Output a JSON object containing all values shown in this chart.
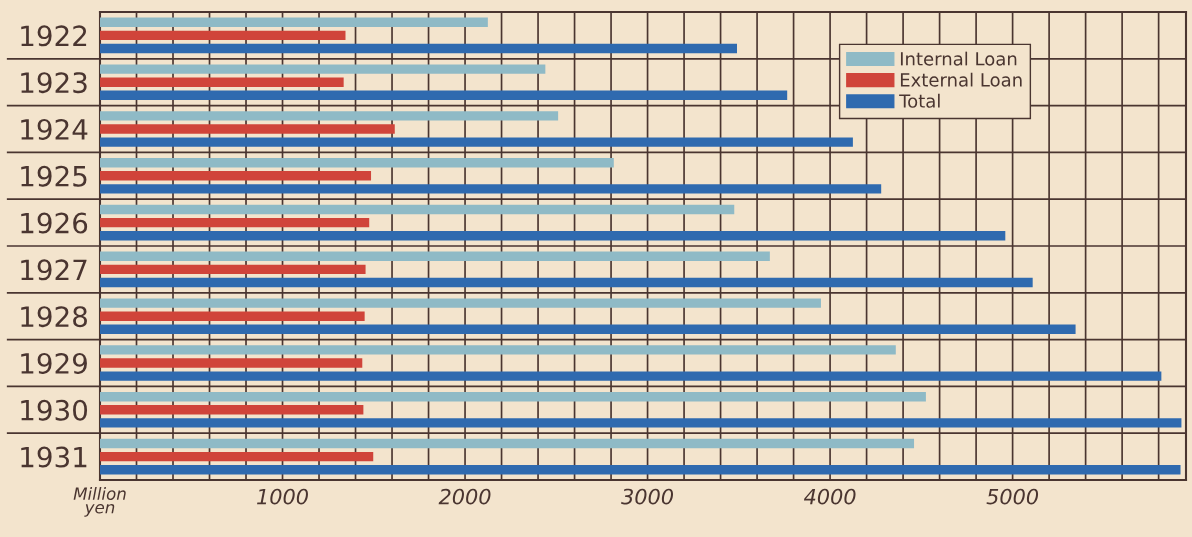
{
  "chart_data": {
    "type": "bar",
    "orientation": "horizontal",
    "xlabel": "Million\nyen",
    "categories": [
      "1922",
      "1923",
      "1924",
      "1925",
      "1926",
      "1927",
      "1928",
      "1929",
      "1930",
      "1931"
    ],
    "series": [
      {
        "name": "Internal Loan",
        "color": "#8fbac6",
        "values": [
          2125,
          2440,
          2510,
          2815,
          3475,
          3670,
          3950,
          4360,
          4525,
          4460
        ]
      },
      {
        "name": "External Loan",
        "color": "#d0443a",
        "values": [
          1345,
          1335,
          1615,
          1485,
          1475,
          1455,
          1450,
          1437,
          1443,
          1497
        ]
      },
      {
        "name": "Total",
        "color": "#2f6aaf",
        "values": [
          3490,
          3765,
          4125,
          4280,
          4960,
          5110,
          5345,
          5815,
          5925,
          5920
        ]
      }
    ],
    "xlim": [
      0,
      5950
    ],
    "xticks": [
      {
        "value": 0,
        "label": null
      },
      {
        "value": 200,
        "label": null
      },
      {
        "value": 400,
        "label": null
      },
      {
        "value": 600,
        "label": null
      },
      {
        "value": 800,
        "label": null
      },
      1000,
      {
        "value": 1200,
        "label": null
      },
      {
        "value": 1400,
        "label": null
      },
      {
        "value": 1600,
        "label": null
      },
      {
        "value": 1800,
        "label": null
      },
      2000,
      {
        "value": 2200,
        "label": null
      },
      {
        "value": 2400,
        "label": null
      },
      {
        "value": 2600,
        "label": null
      },
      {
        "value": 2800,
        "label": null
      },
      3000,
      {
        "value": 3200,
        "label": null
      },
      {
        "value": 3400,
        "label": null
      },
      {
        "value": 3600,
        "label": null
      },
      {
        "value": 3800,
        "label": null
      },
      4000,
      {
        "value": 4200,
        "label": null
      },
      {
        "value": 4400,
        "label": null
      },
      {
        "value": 4600,
        "label": null
      },
      {
        "value": 4800,
        "label": null
      },
      5000,
      {
        "value": 5200,
        "label": null
      },
      {
        "value": 5400,
        "label": null
      },
      {
        "value": 5600,
        "label": null
      },
      {
        "value": 5800,
        "label": null
      }
    ],
    "grid": true,
    "legend": "top right"
  }
}
